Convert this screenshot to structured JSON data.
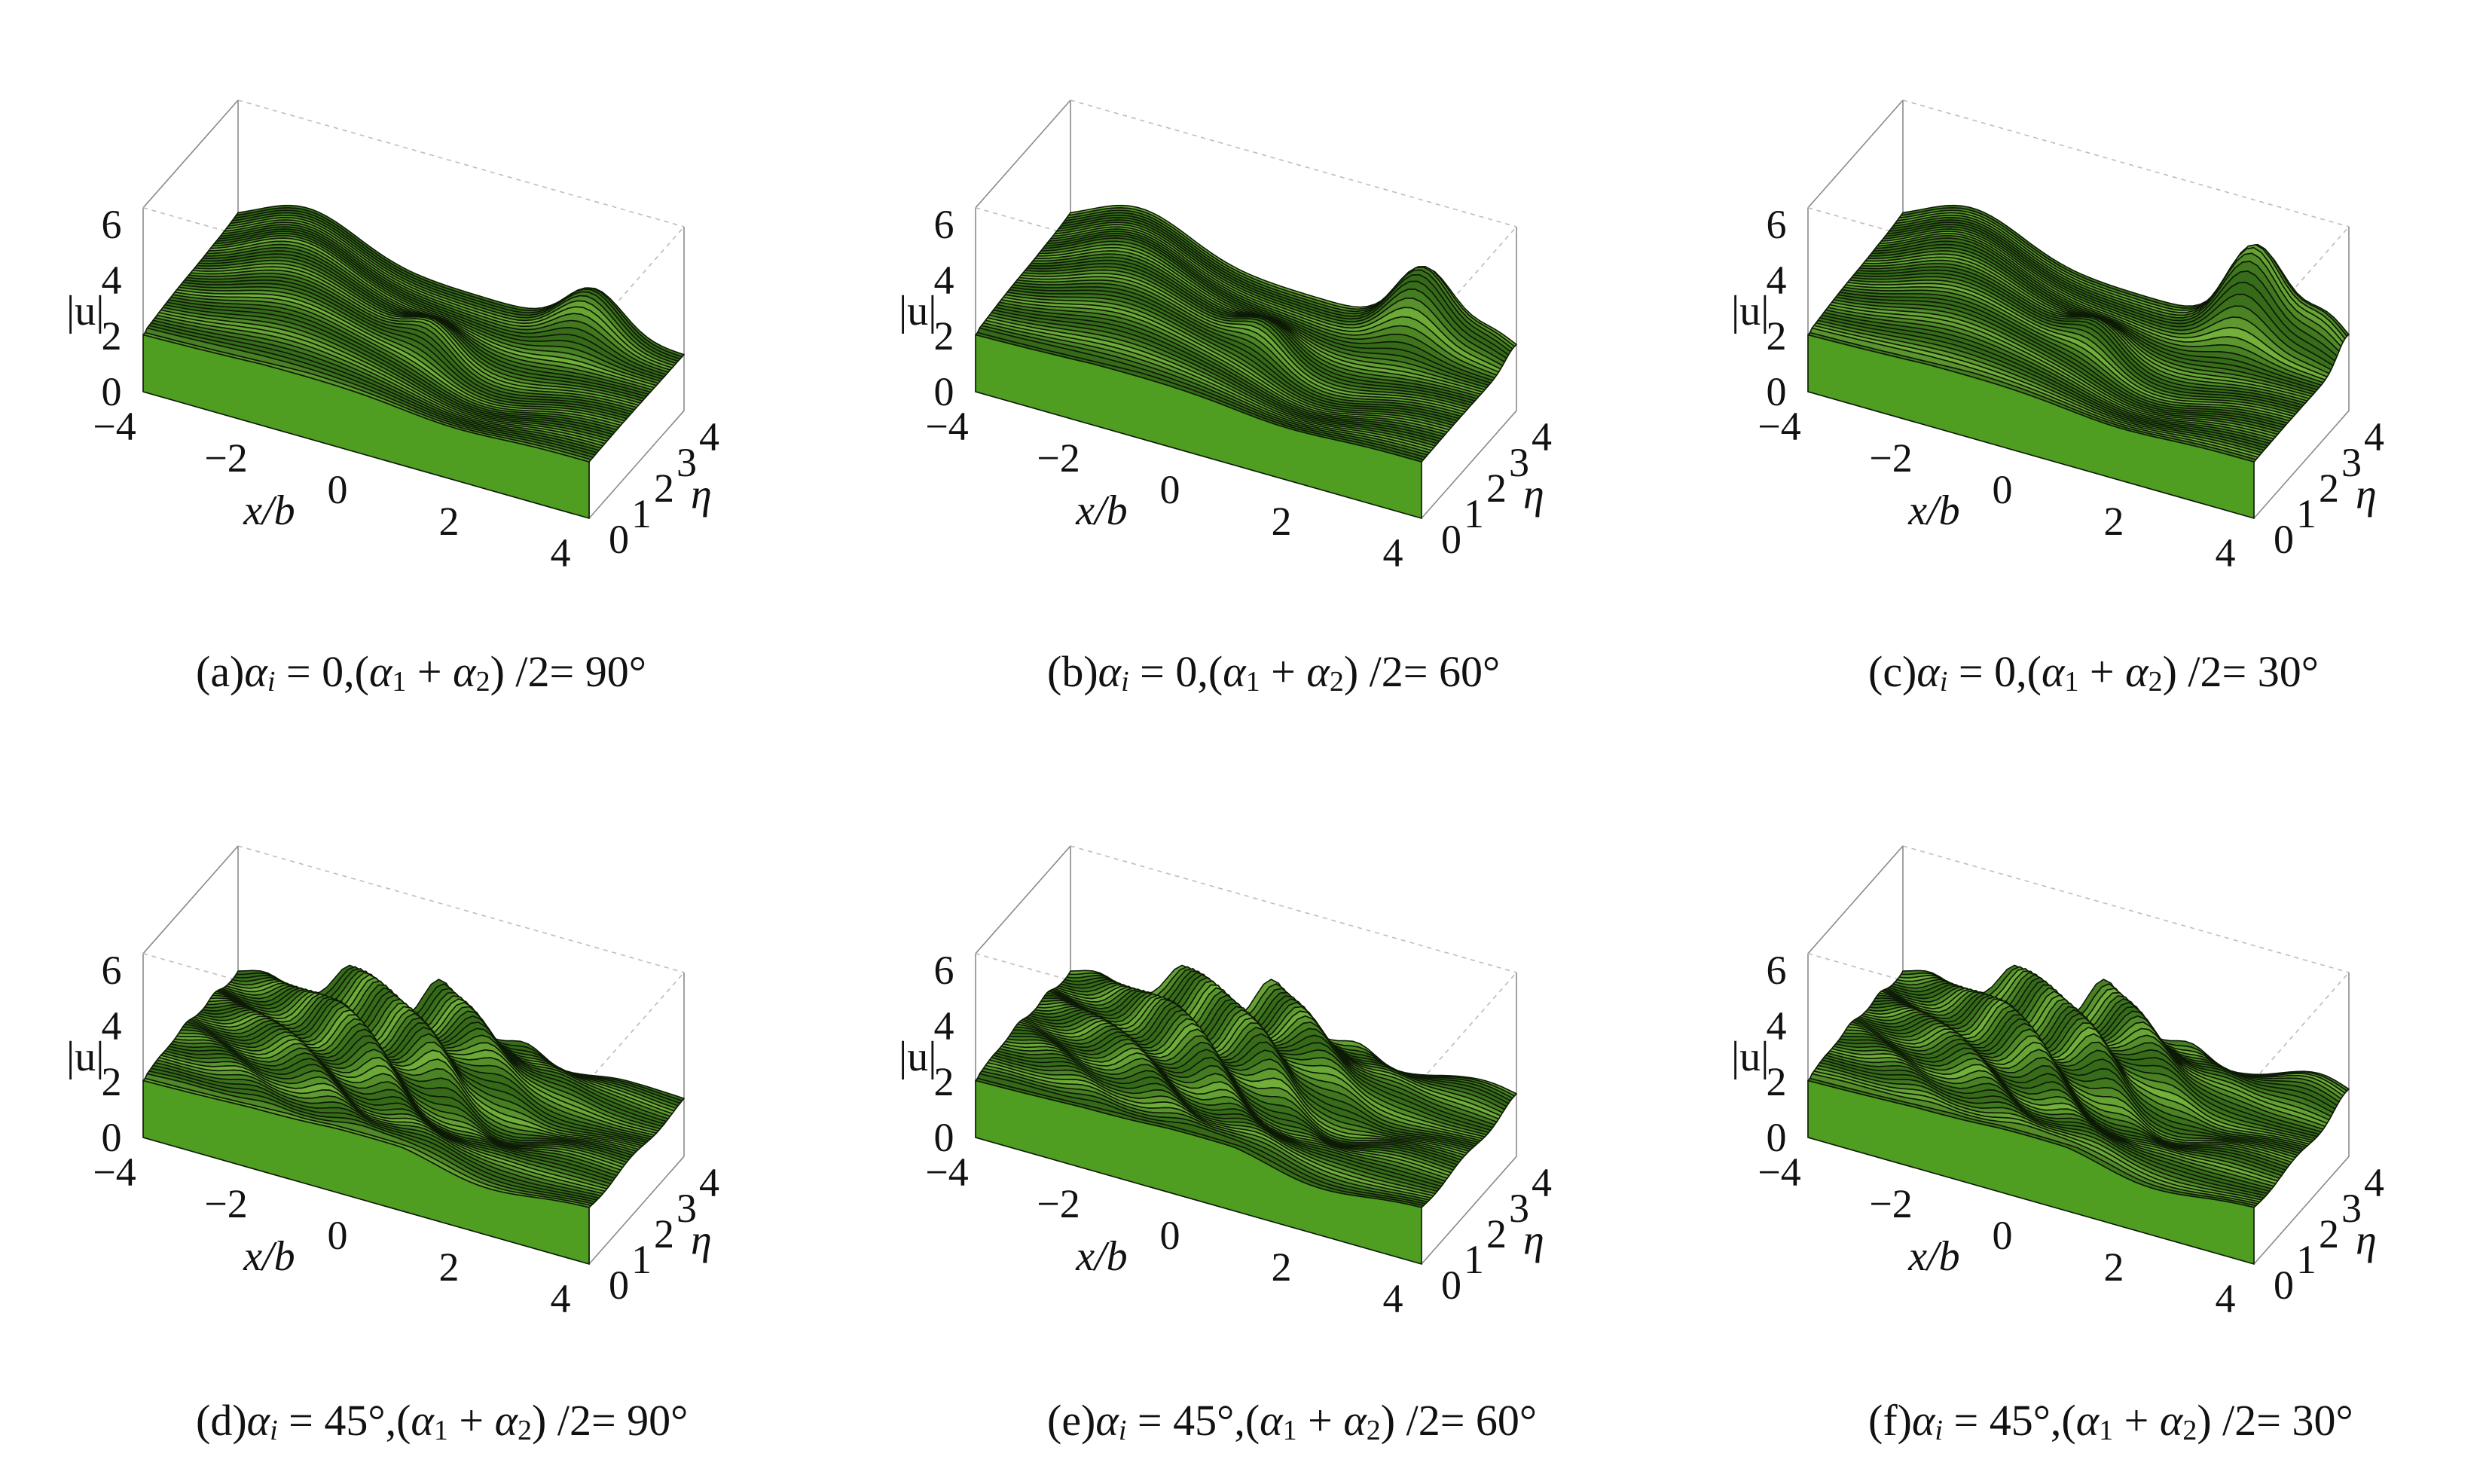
{
  "colors": {
    "surface_light": "#8fd24a",
    "surface_mid": "#4f9e22",
    "surface_dark": "#1f4f0c",
    "mesh": "#0c1a06",
    "box": "#8a8a8a"
  },
  "axes": {
    "x_label": "x/b",
    "y_label": "η",
    "z_label": "|u|",
    "x_ticks": [
      "−4",
      "−2",
      "0",
      "2",
      "4"
    ],
    "y_ticks": [
      "0",
      "1",
      "2",
      "3",
      "4"
    ],
    "z_ticks": [
      "0",
      "2",
      "4",
      "6"
    ]
  },
  "panels": [
    {
      "tag": "(a)",
      "ai": "0",
      "half_sum": "90°"
    },
    {
      "tag": "(b)",
      "ai": "0",
      "half_sum": "60°"
    },
    {
      "tag": "(c)",
      "ai": "0",
      "half_sum": "30°"
    },
    {
      "tag": "(d)",
      "ai": "45°",
      "half_sum": "90°"
    },
    {
      "tag": "(e)",
      "ai": "45°",
      "half_sum": "60°"
    },
    {
      "tag": "(f)",
      "ai": "45°",
      "half_sum": "30°"
    }
  ],
  "chart_data": [
    {
      "type": "surface",
      "panel": "(a)",
      "x_range": [
        -4,
        4
      ],
      "y_range": [
        0,
        4.2
      ],
      "z_range": [
        0,
        6
      ],
      "alpha_i_deg": 0,
      "half_sum_deg": 90
    },
    {
      "type": "surface",
      "panel": "(b)",
      "x_range": [
        -4,
        4
      ],
      "y_range": [
        0,
        4.2
      ],
      "z_range": [
        0,
        6
      ],
      "alpha_i_deg": 0,
      "half_sum_deg": 60
    },
    {
      "type": "surface",
      "panel": "(c)",
      "x_range": [
        -4,
        4
      ],
      "y_range": [
        0,
        4.2
      ],
      "z_range": [
        0,
        6
      ],
      "alpha_i_deg": 0,
      "half_sum_deg": 30
    },
    {
      "type": "surface",
      "panel": "(d)",
      "x_range": [
        -4,
        4
      ],
      "y_range": [
        0,
        4.2
      ],
      "z_range": [
        0,
        6
      ],
      "alpha_i_deg": 45,
      "half_sum_deg": 90
    },
    {
      "type": "surface",
      "panel": "(e)",
      "x_range": [
        -4,
        4
      ],
      "y_range": [
        0,
        4.2
      ],
      "z_range": [
        0,
        6
      ],
      "alpha_i_deg": 45,
      "half_sum_deg": 60
    },
    {
      "type": "surface",
      "panel": "(f)",
      "x_range": [
        -4,
        4
      ],
      "y_range": [
        0,
        4.2
      ],
      "z_range": [
        0,
        6
      ],
      "alpha_i_deg": 45,
      "half_sum_deg": 30
    }
  ]
}
